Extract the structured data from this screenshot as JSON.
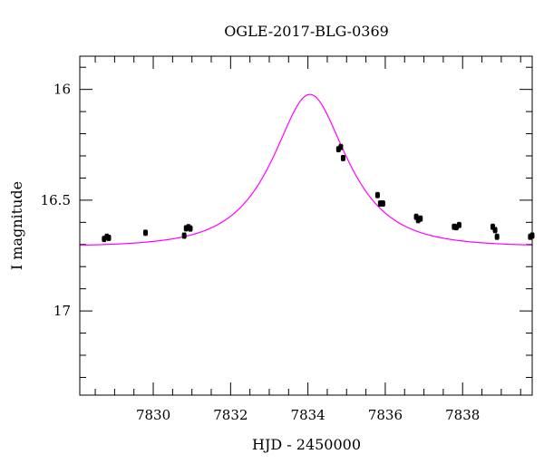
{
  "chart_data": {
    "type": "scatter",
    "title": "OGLE-2017-BLG-0369",
    "xlabel": "HJD - 2450000",
    "ylabel": "I magnitude",
    "xlim": [
      7828.1,
      7839.8
    ],
    "ylim": [
      17.38,
      15.85
    ],
    "y_inverted": true,
    "grid": false,
    "x_ticks": [
      7830,
      7832,
      7834,
      7836,
      7838
    ],
    "x_tick_labels": [
      "7830",
      "7832",
      "7834",
      "7836",
      "7838"
    ],
    "y_ticks": [
      16,
      16.5,
      17
    ],
    "y_tick_labels": [
      "16",
      "16.5",
      "17"
    ],
    "x_minor_step": 0.5,
    "y_minor_step": 0.1,
    "series": [
      {
        "kind": "points",
        "color": "#000000",
        "points": [
          {
            "x": 7828.73,
            "y": 16.675,
            "err": 0.012
          },
          {
            "x": 7828.8,
            "y": 16.665,
            "err": 0.012
          },
          {
            "x": 7828.85,
            "y": 16.67,
            "err": 0.012
          },
          {
            "x": 7829.8,
            "y": 16.647,
            "err": 0.012
          },
          {
            "x": 7830.8,
            "y": 16.66,
            "err": 0.012
          },
          {
            "x": 7830.85,
            "y": 16.627,
            "err": 0.012
          },
          {
            "x": 7830.91,
            "y": 16.622,
            "err": 0.012
          },
          {
            "x": 7830.96,
            "y": 16.628,
            "err": 0.012
          },
          {
            "x": 7834.79,
            "y": 16.27,
            "err": 0.012
          },
          {
            "x": 7834.85,
            "y": 16.26,
            "err": 0.012
          },
          {
            "x": 7834.91,
            "y": 16.31,
            "err": 0.012
          },
          {
            "x": 7835.8,
            "y": 16.477,
            "err": 0.012
          },
          {
            "x": 7835.87,
            "y": 16.515,
            "err": 0.012
          },
          {
            "x": 7835.94,
            "y": 16.515,
            "err": 0.012
          },
          {
            "x": 7836.8,
            "y": 16.575,
            "err": 0.012
          },
          {
            "x": 7836.85,
            "y": 16.59,
            "err": 0.012
          },
          {
            "x": 7836.91,
            "y": 16.583,
            "err": 0.012
          },
          {
            "x": 7837.78,
            "y": 16.62,
            "err": 0.012
          },
          {
            "x": 7837.84,
            "y": 16.622,
            "err": 0.012
          },
          {
            "x": 7837.91,
            "y": 16.612,
            "err": 0.012
          },
          {
            "x": 7838.78,
            "y": 16.62,
            "err": 0.012
          },
          {
            "x": 7838.84,
            "y": 16.635,
            "err": 0.012
          },
          {
            "x": 7838.89,
            "y": 16.665,
            "err": 0.012
          },
          {
            "x": 7839.75,
            "y": 16.665,
            "err": 0.012
          },
          {
            "x": 7839.8,
            "y": 16.66,
            "err": 0.012
          }
        ]
      },
      {
        "kind": "model-curve",
        "color": "#ff00ff",
        "model": {
          "t0": 7834.05,
          "tE": 1.5,
          "u0": 0.6,
          "baseline": 16.71
        }
      }
    ]
  }
}
